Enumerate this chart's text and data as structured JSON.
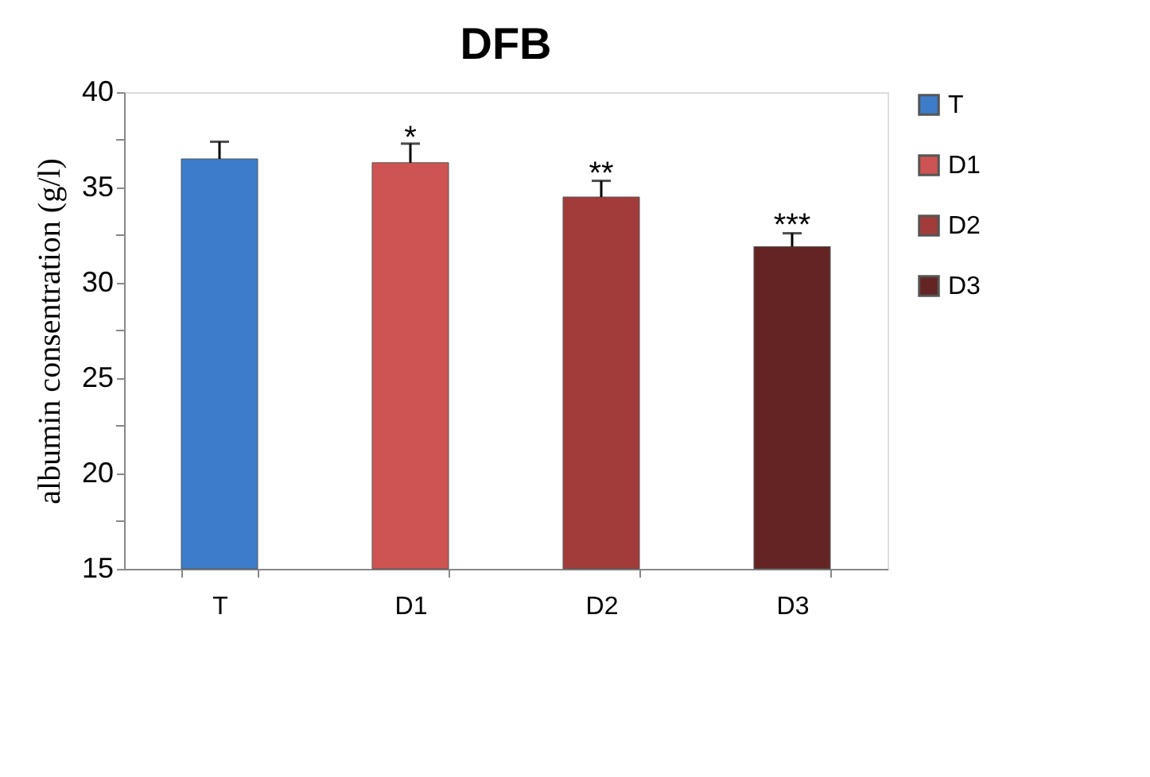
{
  "chart_data": {
    "type": "bar",
    "title": "DFB",
    "ylabel": "albumin consentration (g/l)",
    "categories": [
      "T",
      "D1",
      "D2",
      "D3"
    ],
    "series": [
      {
        "name": "T",
        "color": "#3d7cc9",
        "values": [
          36.5,
          null,
          null,
          null
        ],
        "errors": [
          0.9,
          null,
          null,
          null
        ]
      },
      {
        "name": "D1",
        "color": "#cd5452",
        "values": [
          null,
          36.3,
          null,
          null
        ],
        "errors": [
          null,
          1.0,
          null,
          null
        ]
      },
      {
        "name": "D2",
        "color": "#a23c3a",
        "values": [
          null,
          null,
          34.5,
          null
        ],
        "errors": [
          null,
          null,
          0.85,
          null
        ]
      },
      {
        "name": "D3",
        "color": "#632523",
        "values": [
          null,
          null,
          null,
          31.9
        ],
        "errors": [
          null,
          null,
          null,
          0.7
        ]
      }
    ],
    "ylim": [
      15,
      40
    ],
    "yticks": [
      15,
      {
        "value": 17.5,
        "label": null
      },
      20,
      {
        "value": 22.5,
        "label": null
      },
      25,
      {
        "value": 27.5,
        "label": null
      },
      30,
      {
        "value": 32.5,
        "label": null
      },
      35,
      {
        "value": 37.5,
        "label": null
      },
      40
    ],
    "annotations": [
      {
        "text": "*",
        "x": "D1",
        "y": 37.6
      },
      {
        "text": "**",
        "x": "D2",
        "y": 35.7
      },
      {
        "text": "***",
        "x": "D3",
        "y": 33.0
      }
    ],
    "legend": "right",
    "grid": false
  }
}
